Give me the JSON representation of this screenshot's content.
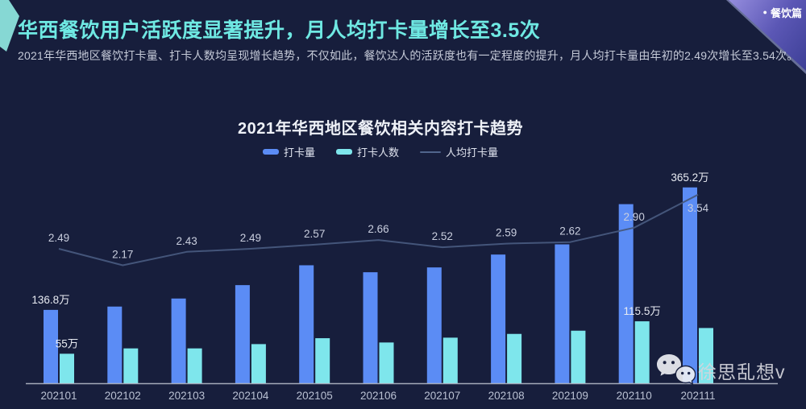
{
  "header": {
    "badge_label": "餐饮篇",
    "badge_bullet": "●",
    "title": "华西餐饮用户活跃度显著提升，月人均打卡量增长至3.5次",
    "subtitle": "2021年华西地区餐饮打卡量、打卡人数均呈现增长趋势，不仅如此，餐饮达人的活跃度也有一定程度的提升，月人均打卡量由年初的2.49次增长至3.54次。"
  },
  "chart_data": {
    "type": "combo",
    "title": "2021年华西地区餐饮相关内容打卡趋势",
    "categories": [
      "202101",
      "202102",
      "202103",
      "202104",
      "202105",
      "202106",
      "202107",
      "202108",
      "202109",
      "202110",
      "202111"
    ],
    "legend_position": "top",
    "grid": false,
    "y_axis_visible": false,
    "series": [
      {
        "name": "打卡量",
        "type": "bar",
        "color": "#5b8cf5",
        "unit": "万",
        "values": [
          136.8,
          143,
          158,
          183,
          220,
          207,
          216,
          240,
          259,
          334,
          365.2
        ],
        "value_labels": {
          "0": "136.8万",
          "10": "365.2万"
        }
      },
      {
        "name": "打卡人数",
        "type": "bar",
        "color": "#7ee6ec",
        "unit": "万",
        "values": [
          55,
          65,
          65,
          73,
          84,
          76,
          85,
          92,
          98,
          115.5,
          103
        ],
        "value_labels": {
          "0": "55万",
          "9": "115.5万"
        }
      },
      {
        "name": "人均打卡量",
        "type": "line",
        "color": "#47597d",
        "values": [
          2.49,
          2.17,
          2.43,
          2.49,
          2.57,
          2.66,
          2.52,
          2.59,
          2.62,
          2.9,
          3.54
        ]
      }
    ]
  },
  "watermark": {
    "name": "徐思乱想v"
  },
  "colors": {
    "background": "#171e3c",
    "title_accent": "#6fe9e3",
    "bar_blue": "#5b8cf5",
    "bar_cyan": "#7ee6ec",
    "trend_line": "#47597d",
    "axis_line": "#c8cdd9",
    "ribbon_start": "#958dde",
    "ribbon_end": "#3d3f96",
    "corner_decoration": "#86d8d4"
  }
}
